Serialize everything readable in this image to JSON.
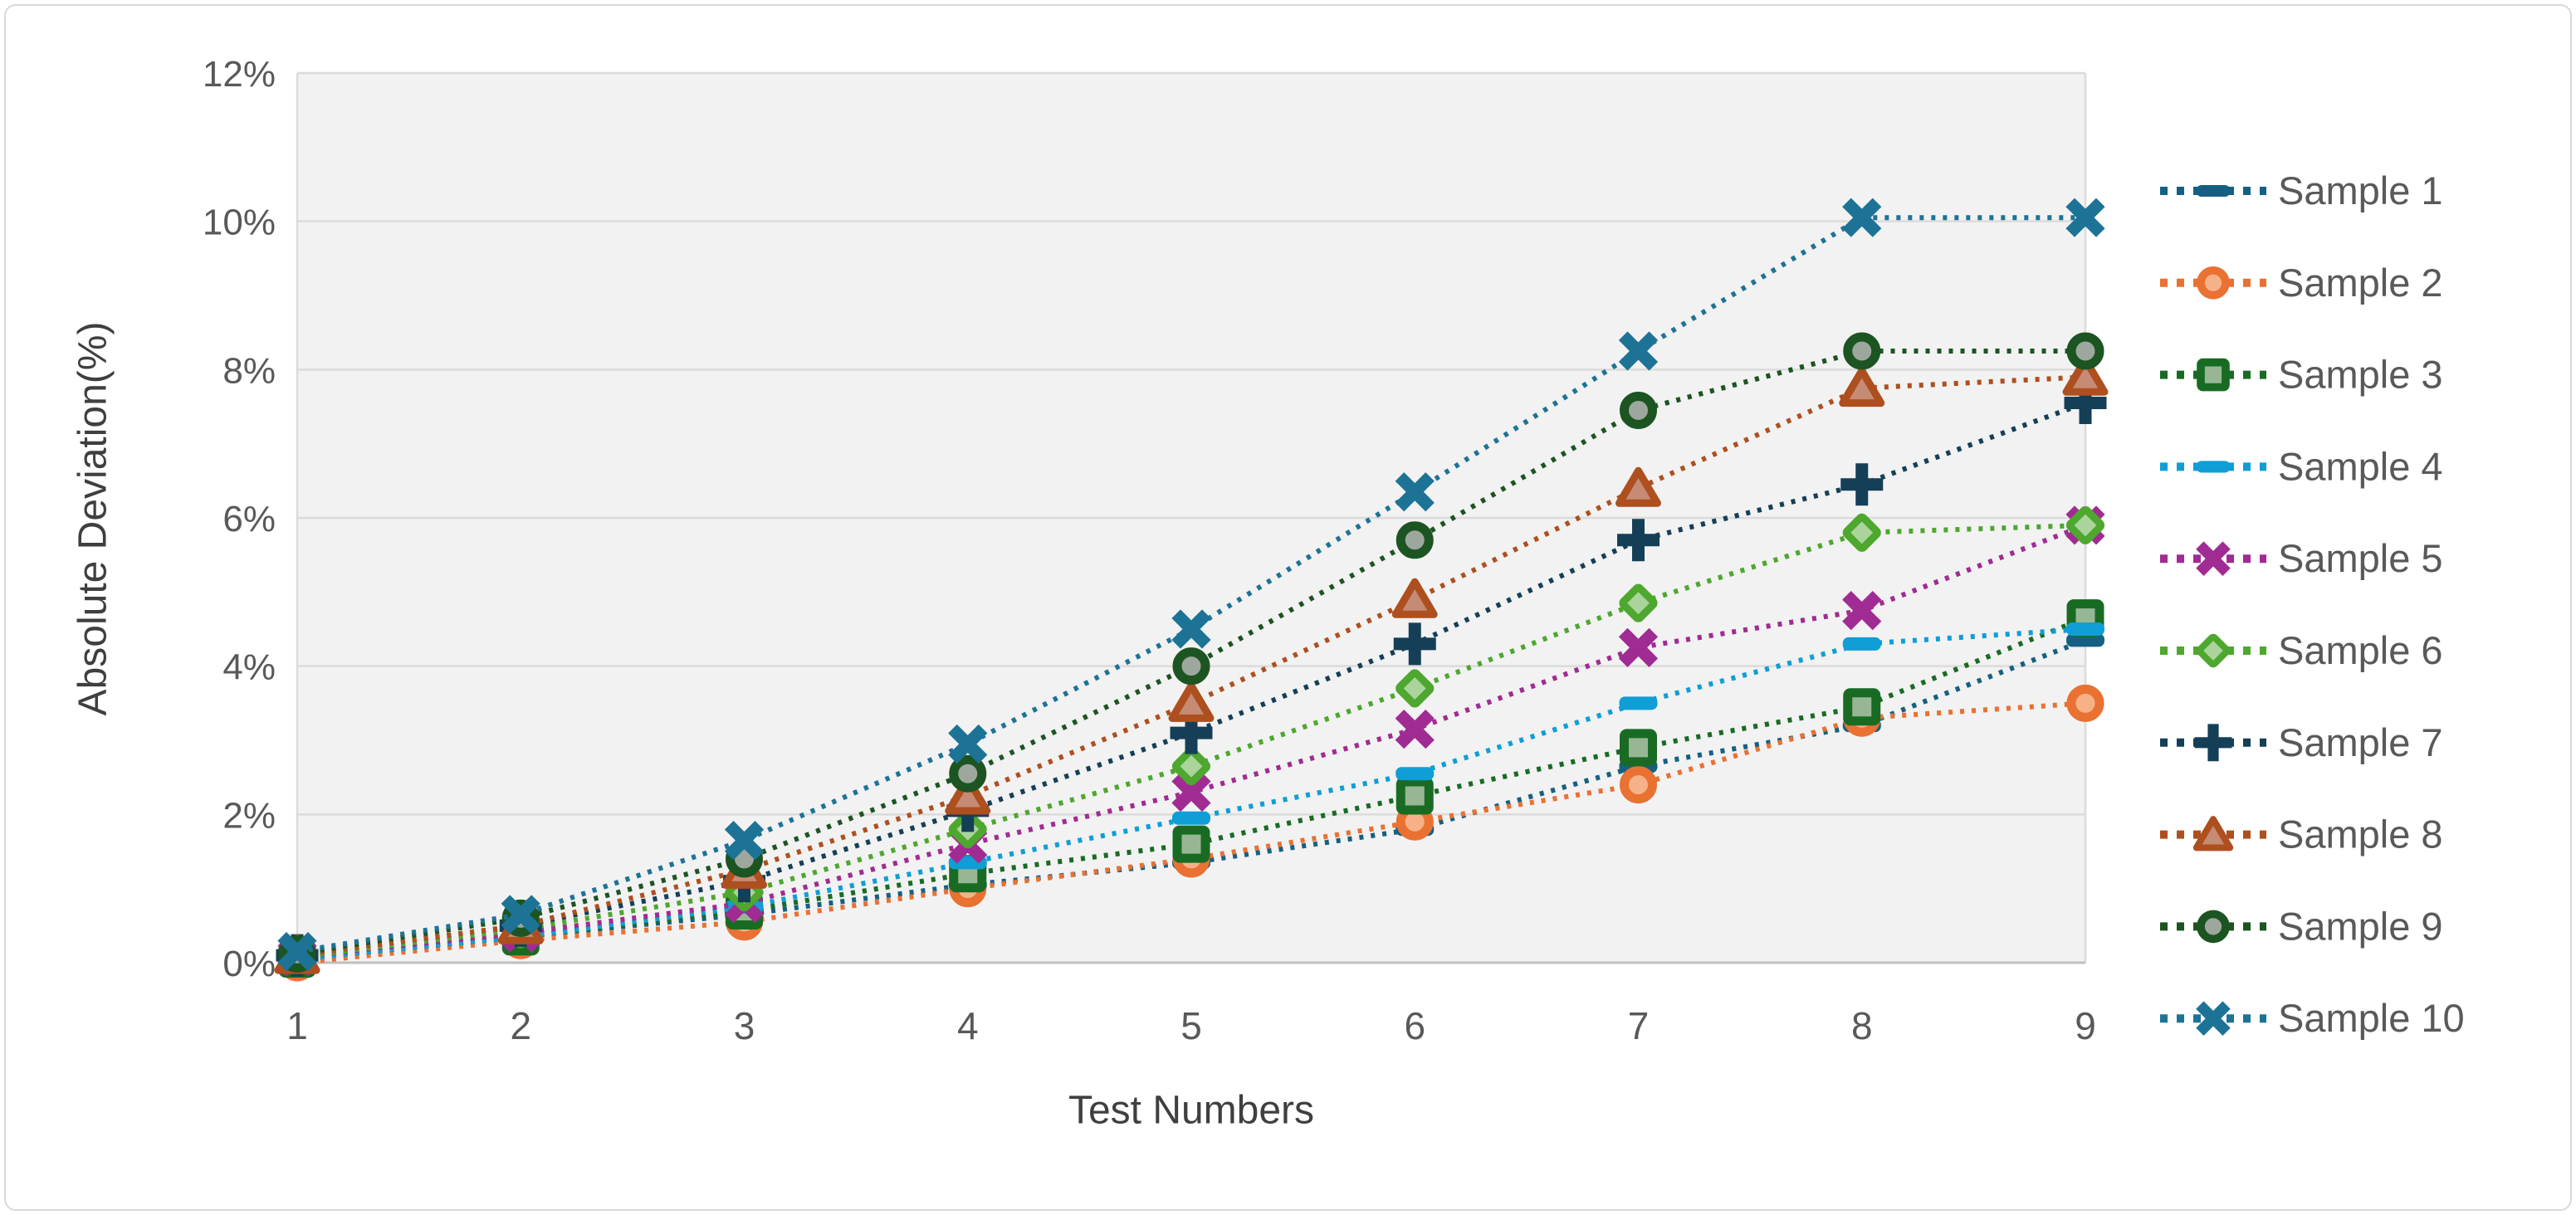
{
  "chart_data": {
    "type": "line",
    "title": "",
    "xlabel": "Test Numbers",
    "ylabel": "Absolute Deviation(%)",
    "categories": [
      "1",
      "2",
      "3",
      "4",
      "5",
      "6",
      "7",
      "8",
      "9"
    ],
    "ylim": [
      0,
      12
    ],
    "yticks": [
      {
        "value": 0,
        "label": "0%"
      },
      {
        "value": 2,
        "label": "2%"
      },
      {
        "value": 4,
        "label": "4%"
      },
      {
        "value": 6,
        "label": "6%"
      },
      {
        "value": 8,
        "label": "8%"
      },
      {
        "value": 10,
        "label": "10%"
      },
      {
        "value": 12,
        "label": "12%"
      }
    ],
    "grid": true,
    "legend_position": "right",
    "line_style": "dotted",
    "axis_text_color": "#595959",
    "grid_color": "#DBDBDB",
    "axis_line_color": "#BFBFBF",
    "plot_bg_color": "#F2F2F2",
    "series": [
      {
        "name": "Sample 1",
        "color": "#156082",
        "marker": "dash",
        "fill": "#156082",
        "values": [
          0.05,
          0.35,
          0.65,
          1.05,
          1.35,
          1.8,
          2.65,
          3.2,
          4.35
        ]
      },
      {
        "name": "Sample 2",
        "color": "#E97132",
        "marker": "circle",
        "fill": "#F6B188",
        "values": [
          0.0,
          0.3,
          0.55,
          1.0,
          1.4,
          1.9,
          2.4,
          3.3,
          3.5
        ]
      },
      {
        "name": "Sample 3",
        "color": "#196B24",
        "marker": "square",
        "fill": "#97B794",
        "values": [
          0.05,
          0.35,
          0.7,
          1.2,
          1.6,
          2.25,
          2.9,
          3.45,
          4.65
        ]
      },
      {
        "name": "Sample 4",
        "color": "#0F9ED5",
        "marker": "dash",
        "fill": "#0F9ED5",
        "values": [
          0.05,
          0.35,
          0.75,
          1.35,
          1.95,
          2.55,
          3.5,
          4.3,
          4.5
        ]
      },
      {
        "name": "Sample 5",
        "color": "#A02B93",
        "marker": "x",
        "fill": "#A02B93",
        "values": [
          0.08,
          0.4,
          0.8,
          1.6,
          2.3,
          3.15,
          4.25,
          4.75,
          5.9
        ]
      },
      {
        "name": "Sample 6",
        "color": "#4EA72E",
        "marker": "diamond",
        "fill": "#ABD49C",
        "values": [
          0.08,
          0.45,
          0.95,
          1.8,
          2.65,
          3.7,
          4.85,
          5.8,
          5.9
        ]
      },
      {
        "name": "Sample 7",
        "color": "#153F57",
        "marker": "plus",
        "fill": "#153F57",
        "values": [
          0.1,
          0.5,
          1.1,
          2.05,
          3.1,
          4.3,
          5.7,
          6.45,
          7.55
        ]
      },
      {
        "name": "Sample 8",
        "color": "#AE4F1F",
        "marker": "triangle",
        "fill": "#C68B74",
        "values": [
          0.1,
          0.5,
          1.25,
          2.25,
          3.5,
          4.9,
          6.4,
          7.75,
          7.9
        ]
      },
      {
        "name": "Sample 9",
        "color": "#1C5422",
        "marker": "circle",
        "fill": "#9EA79E",
        "values": [
          0.12,
          0.6,
          1.4,
          2.55,
          4.0,
          5.7,
          7.45,
          8.25,
          8.25
        ]
      },
      {
        "name": "Sample 10",
        "color": "#1D7396",
        "marker": "x",
        "fill": "#1D7396",
        "values": [
          0.15,
          0.65,
          1.65,
          2.95,
          4.5,
          6.35,
          8.25,
          10.05,
          10.05
        ]
      }
    ]
  }
}
